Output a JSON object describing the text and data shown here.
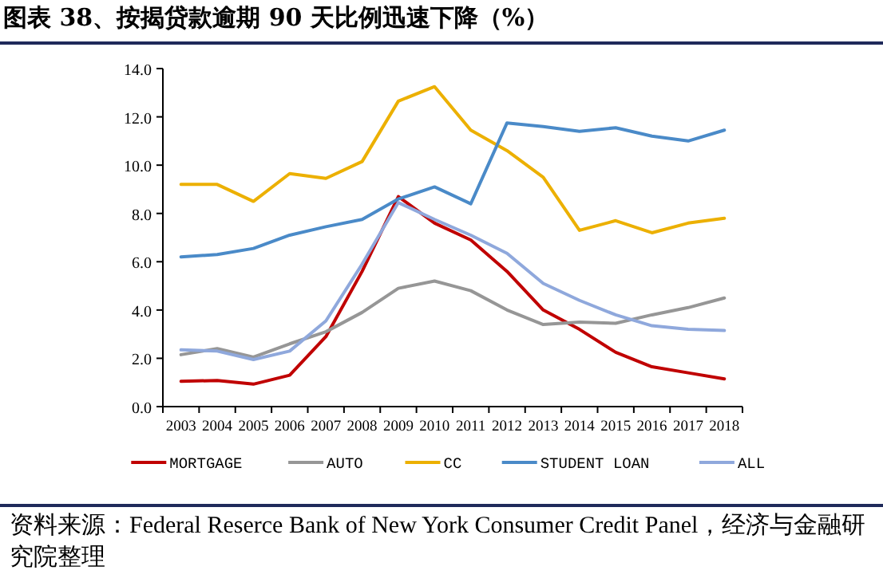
{
  "chart_data": {
    "type": "line",
    "title": "图表 38、按揭贷款逾期 90 天比例迅速下降（%）",
    "categories": [
      "2003",
      "2004",
      "2005",
      "2006",
      "2007",
      "2008",
      "2009",
      "2010",
      "2011",
      "2012",
      "2013",
      "2014",
      "2015",
      "2016",
      "2017",
      "2018"
    ],
    "series": [
      {
        "name": "MORTGAGE",
        "color": "#c00000",
        "values": [
          1.05,
          1.08,
          0.93,
          1.3,
          2.9,
          5.6,
          8.7,
          7.6,
          6.9,
          5.6,
          4.0,
          3.2,
          2.25,
          1.65,
          1.4,
          1.15
        ]
      },
      {
        "name": "AUTO",
        "color": "#969696",
        "values": [
          2.15,
          2.4,
          2.05,
          2.6,
          3.1,
          3.9,
          4.9,
          5.2,
          4.8,
          4.0,
          3.4,
          3.5,
          3.45,
          3.8,
          4.1,
          4.5
        ]
      },
      {
        "name": "CC",
        "color": "#ecb000",
        "values": [
          9.2,
          9.2,
          8.5,
          9.65,
          9.45,
          10.15,
          12.65,
          13.25,
          11.45,
          10.6,
          9.5,
          7.3,
          7.7,
          7.2,
          7.6,
          7.8
        ]
      },
      {
        "name": "STUDENT LOAN",
        "color": "#4a8ac8",
        "values": [
          6.2,
          6.3,
          6.55,
          7.1,
          7.45,
          7.75,
          8.6,
          9.1,
          8.4,
          11.75,
          11.6,
          11.4,
          11.55,
          11.2,
          11.0,
          11.45
        ]
      },
      {
        "name": "ALL",
        "color": "#8fa8dc",
        "values": [
          2.35,
          2.3,
          1.95,
          2.3,
          3.55,
          5.9,
          8.45,
          7.75,
          7.1,
          6.35,
          5.1,
          4.4,
          3.8,
          3.35,
          3.2,
          3.15
        ]
      }
    ],
    "ylim": [
      0,
      14
    ],
    "yticks": [
      {
        "value": 0,
        "label": "0.0"
      },
      {
        "value": 2,
        "label": "2.0"
      },
      {
        "value": 4,
        "label": "4.0"
      },
      {
        "value": 6,
        "label": "6.0"
      },
      {
        "value": 8,
        "label": "8.0"
      },
      {
        "value": 10,
        "label": "10.0"
      },
      {
        "value": 12,
        "label": "12.0"
      },
      {
        "value": 14,
        "label": "14.0"
      }
    ],
    "legend": "bottom",
    "marker": "none",
    "line_style": "solid",
    "annotations": [
      "资料来源：Federal Reserce Bank of New York Consumer Credit Panel，经济与金融研究院整理"
    ]
  }
}
